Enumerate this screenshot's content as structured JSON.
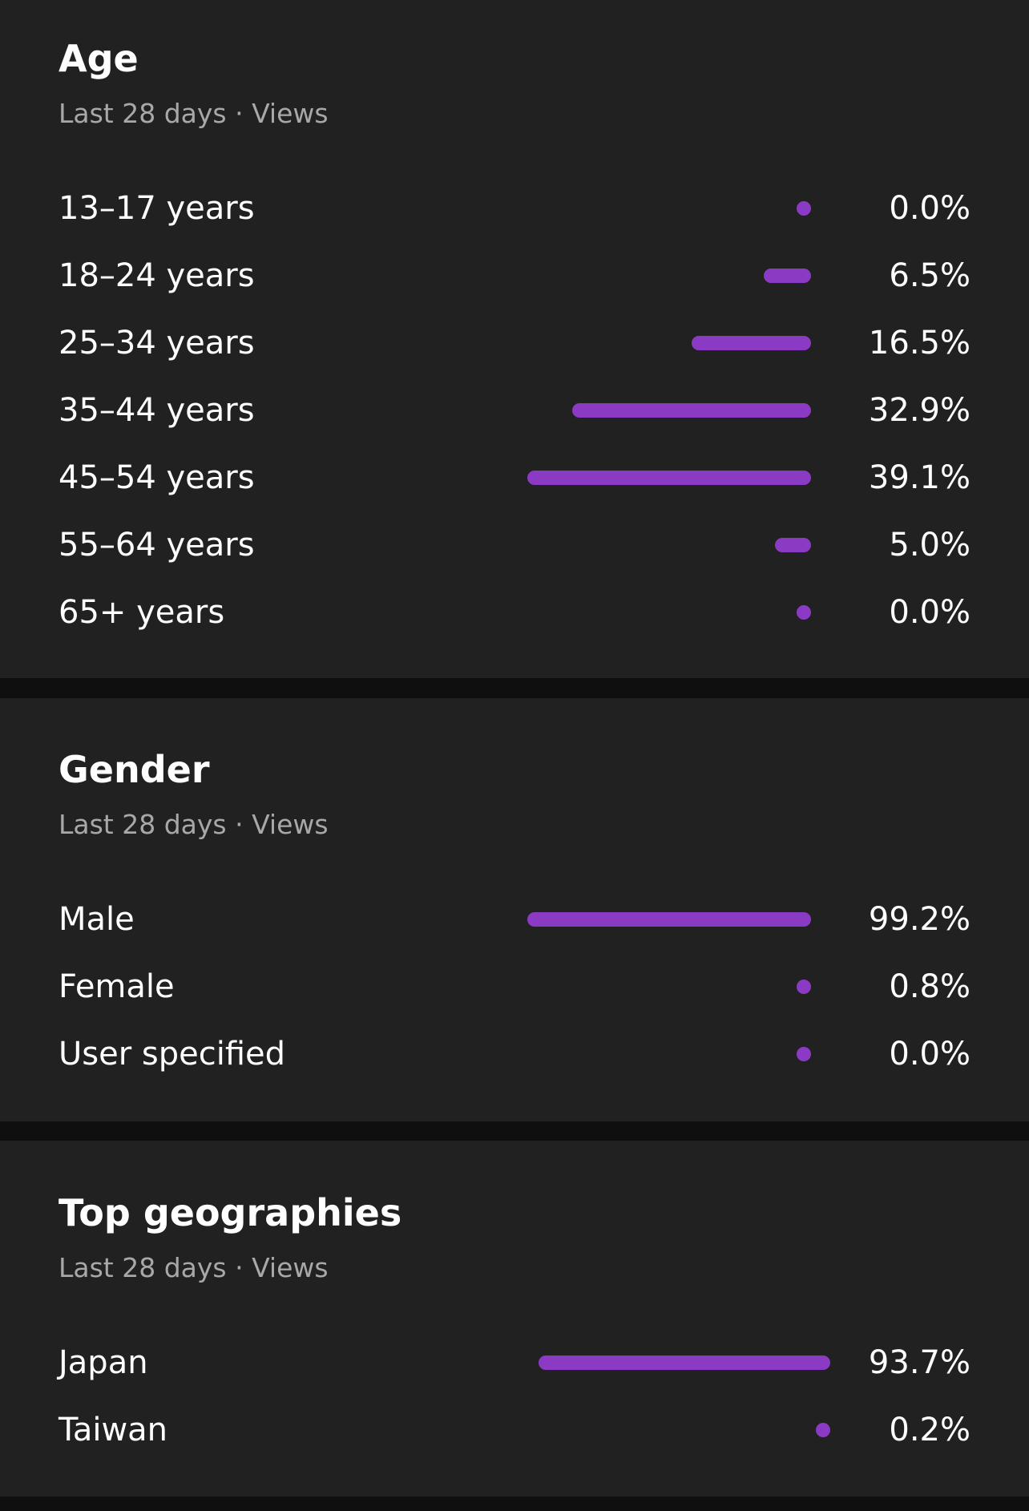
{
  "accent_color": "#8b3ac3",
  "age": {
    "title": "Age",
    "subtitle": "Last 28 days · Views",
    "rows": [
      {
        "label": "13–17 years",
        "value": "0.0%",
        "percent": 0.0
      },
      {
        "label": "18–24 years",
        "value": "6.5%",
        "percent": 6.5
      },
      {
        "label": "25–34 years",
        "value": "16.5%",
        "percent": 16.5
      },
      {
        "label": "35–44 years",
        "value": "32.9%",
        "percent": 32.9
      },
      {
        "label": "45–54 years",
        "value": "39.1%",
        "percent": 39.1
      },
      {
        "label": "55–64 years",
        "value": "5.0%",
        "percent": 5.0
      },
      {
        "label": "65+ years",
        "value": "0.0%",
        "percent": 0.0
      }
    ]
  },
  "gender": {
    "title": "Gender",
    "subtitle": "Last 28 days · Views",
    "rows": [
      {
        "label": "Male",
        "value": "99.2%",
        "percent": 99.2
      },
      {
        "label": "Female",
        "value": "0.8%",
        "percent": 0.8
      },
      {
        "label": "User specified",
        "value": "0.0%",
        "percent": 0.0
      }
    ]
  },
  "geographies": {
    "title": "Top geographies",
    "subtitle": "Last 28 days · Views",
    "rows": [
      {
        "label": "Japan",
        "value": "93.7%",
        "percent": 93.7
      },
      {
        "label": "Taiwan",
        "value": "0.2%",
        "percent": 0.2
      }
    ]
  }
}
